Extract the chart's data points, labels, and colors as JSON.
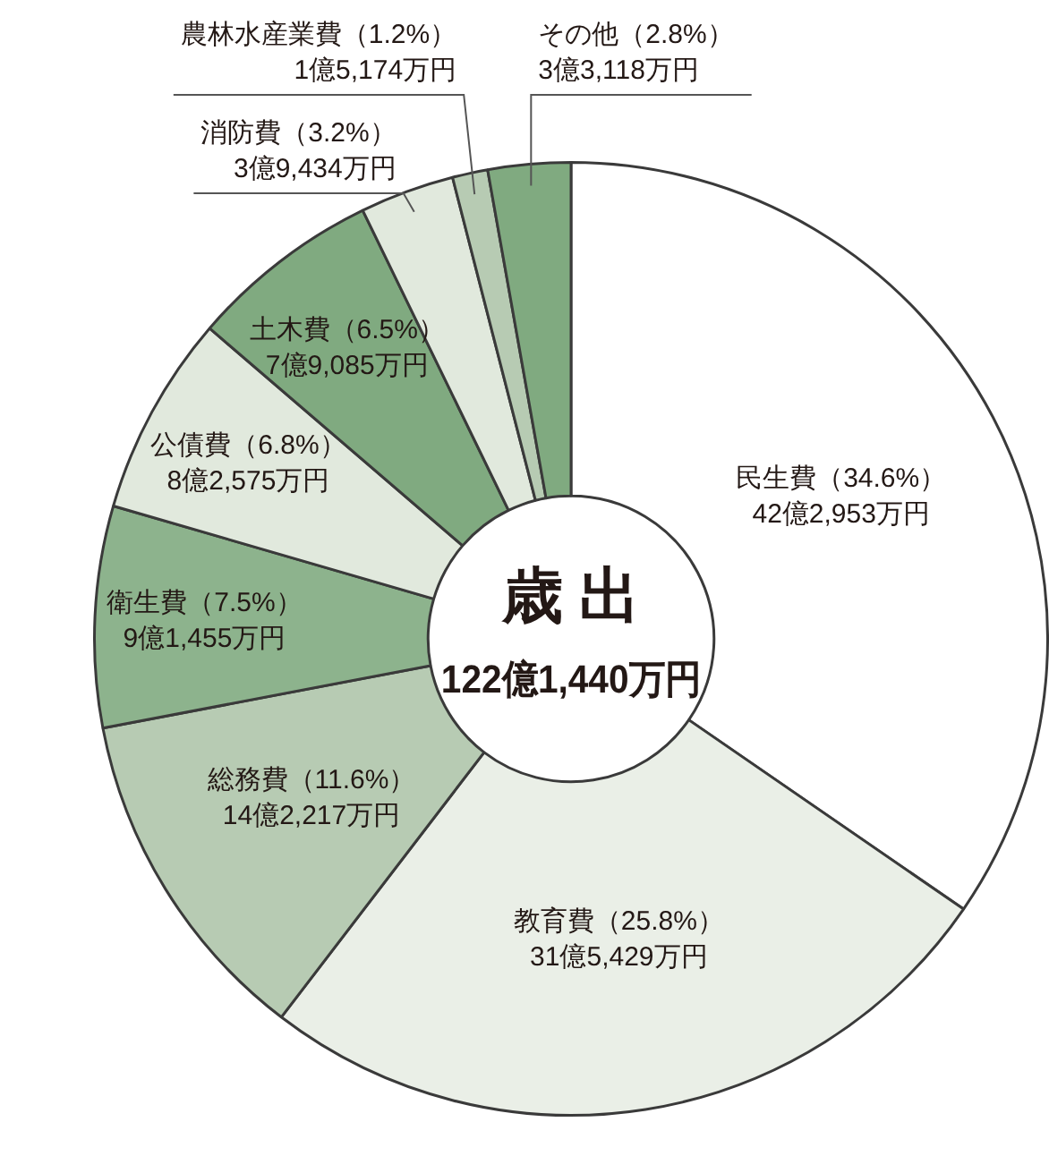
{
  "chart_data": {
    "type": "donut",
    "title": "歳 出",
    "subtitle": "122億1,440万円",
    "categories": [
      "民生費",
      "教育費",
      "総務費",
      "衛生費",
      "公債費",
      "土木費",
      "消防費",
      "農林水産業費",
      "その他"
    ],
    "values": [
      34.6,
      25.8,
      11.6,
      7.5,
      6.8,
      6.5,
      3.2,
      1.2,
      2.8
    ],
    "value_labels": [
      "（34.6%）\n42億2,953万円",
      "（25.8%）\n31億5,429万円",
      "（11.6%）\n14億2,217万円",
      "（7.5%）\n9億1,455万円",
      "（6.8%）\n8億2,575万円",
      "（6.5%）\n7億9,085万円",
      "（3.2%）\n3億9,434万円",
      "（1.2%）\n1億5,174万円",
      "（2.8%）\n3億3,118万円"
    ],
    "colors": [
      "#ffffff",
      "#eaefe7",
      "#b7cbb3",
      "#8db38d",
      "#e1e9dd",
      "#80aa80",
      "#e1e9dd",
      "#b7cbb3",
      "#80aa80"
    ],
    "legend": false
  }
}
